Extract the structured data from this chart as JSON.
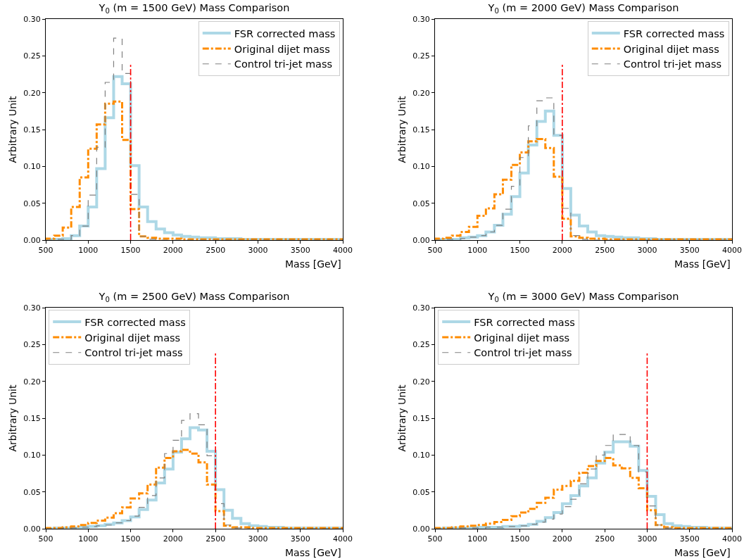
{
  "chart_data": [
    {
      "type": "histogram",
      "title": "Y$_{0}$ (m = 1500 GeV) Mass Comparison",
      "xlabel": "Mass [GeV]",
      "ylabel": "Arbitrary Unit",
      "legend": "top right",
      "grid": false,
      "bins": [
        500,
        600,
        700,
        800,
        900,
        1000,
        1100,
        1200,
        1300,
        1400,
        1500,
        1600,
        1700,
        1800,
        1900,
        2000,
        2100,
        2200,
        2300,
        2400,
        2500,
        2600,
        2700,
        2800,
        2900,
        3000,
        3100,
        3200,
        3300,
        3400,
        3500,
        3600,
        3700,
        3800,
        3900,
        4000
      ],
      "series": [
        {
          "name": "FSR corrected mass",
          "color": "#add8e6",
          "line_style": "solid",
          "values": [
            0.001,
            0.001,
            0.002,
            0.006,
            0.019,
            0.045,
            0.097,
            0.166,
            0.222,
            0.212,
            0.101,
            0.045,
            0.025,
            0.015,
            0.01,
            0.007,
            0.005,
            0.004,
            0.003,
            0.003,
            0.002,
            0.002,
            0.002,
            0.001,
            0.001,
            0.001,
            0.001,
            0.001,
            0.001,
            0.001,
            0.001,
            0.001,
            0.001,
            0.001,
            0.001
          ]
        },
        {
          "name": "Original dijet mass",
          "color": "#ff8c00",
          "line_style": "dashdot",
          "values": [
            0.002,
            0.006,
            0.017,
            0.045,
            0.085,
            0.124,
            0.157,
            0.185,
            0.188,
            0.136,
            0.042,
            0.005,
            0.003,
            0.002,
            0.002,
            0.002,
            0.001,
            0.001,
            0.001,
            0.001,
            0.001,
            0.001,
            0.001,
            0.001,
            0.001,
            0.001,
            0.001,
            0.001,
            0.001,
            0.001,
            0.001,
            0.001,
            0.001,
            0.001,
            0.001
          ]
        },
        {
          "name": "Control tri-jet mass",
          "color": "#808080",
          "line_style": "dashed",
          "values": [
            0,
            0.001,
            0.001,
            0.006,
            0.019,
            0.061,
            0.126,
            0.214,
            0.274,
            0.226,
            0.062,
            0.005,
            0.001,
            0,
            0,
            0,
            0,
            0,
            0,
            0,
            0,
            0,
            0,
            0,
            0,
            0,
            0,
            0,
            0,
            0,
            0,
            0,
            0,
            0,
            0
          ]
        }
      ],
      "xlim": [
        500,
        4000
      ],
      "xticks": [
        500,
        1000,
        1500,
        2000,
        2500,
        3000,
        3500,
        4000
      ],
      "ylim": [
        0,
        0.3
      ],
      "yticks": [
        {
          "value": 0,
          "label": "0.00"
        },
        {
          "value": 0.05,
          "label": "0.05"
        },
        {
          "value": 0.1,
          "label": "0.10"
        },
        {
          "value": 0.15,
          "label": "0.15"
        },
        {
          "value": 0.2,
          "label": "0.20"
        },
        {
          "value": 0.25,
          "label": "0.25"
        },
        {
          "value": 0.3,
          "label": "0.30"
        }
      ],
      "ref_lines": [
        {
          "axis": "x",
          "value": 1500,
          "color": "#ff0000",
          "line_style": "dashdot"
        }
      ]
    },
    {
      "type": "histogram",
      "title": "Y$_{0}$ (m = 2000 GeV) Mass Comparison",
      "xlabel": "Mass [GeV]",
      "ylabel": "Arbitrary Unit",
      "legend": "top right",
      "grid": false,
      "bins": [
        500,
        600,
        700,
        800,
        900,
        1000,
        1100,
        1200,
        1300,
        1400,
        1500,
        1600,
        1700,
        1800,
        1900,
        2000,
        2100,
        2200,
        2300,
        2400,
        2500,
        2600,
        2700,
        2800,
        2900,
        3000,
        3100,
        3200,
        3300,
        3400,
        3500,
        3600,
        3700,
        3800,
        3900,
        4000
      ],
      "series": [
        {
          "name": "FSR corrected mass",
          "color": "#add8e6",
          "line_style": "solid",
          "values": [
            0.001,
            0.001,
            0.001,
            0.003,
            0.004,
            0.006,
            0.011,
            0.02,
            0.035,
            0.059,
            0.091,
            0.129,
            0.161,
            0.175,
            0.142,
            0.07,
            0.034,
            0.019,
            0.011,
            0.006,
            0.005,
            0.004,
            0.003,
            0.003,
            0.002,
            0.002,
            0.001,
            0.001,
            0.001,
            0.001,
            0.001,
            0.001,
            0.001,
            0.001,
            0.001
          ]
        },
        {
          "name": "Original dijet mass",
          "color": "#ff8c00",
          "line_style": "dashdot",
          "values": [
            0.002,
            0.003,
            0.006,
            0.011,
            0.018,
            0.033,
            0.043,
            0.062,
            0.082,
            0.102,
            0.119,
            0.134,
            0.137,
            0.125,
            0.086,
            0.029,
            0.005,
            0.003,
            0.002,
            0.002,
            0.001,
            0.001,
            0.001,
            0.001,
            0.001,
            0.001,
            0.001,
            0.001,
            0.001,
            0.001,
            0.001,
            0.001,
            0.001,
            0.001,
            0.001
          ]
        },
        {
          "name": "Control tri-jet mass",
          "color": "#808080",
          "line_style": "dashed",
          "values": [
            0,
            0.001,
            0.001,
            0.002,
            0.004,
            0.006,
            0.011,
            0.02,
            0.042,
            0.073,
            0.112,
            0.155,
            0.189,
            0.193,
            0.142,
            0.043,
            0.006,
            0.001,
            0,
            0,
            0,
            0,
            0,
            0,
            0,
            0,
            0,
            0,
            0,
            0,
            0,
            0,
            0,
            0,
            0
          ]
        }
      ],
      "xlim": [
        500,
        4000
      ],
      "xticks": [
        500,
        1000,
        1500,
        2000,
        2500,
        3000,
        3500,
        4000
      ],
      "ylim": [
        0,
        0.3
      ],
      "yticks": [
        {
          "value": 0,
          "label": "0.00"
        },
        {
          "value": 0.05,
          "label": "0.05"
        },
        {
          "value": 0.1,
          "label": "0.10"
        },
        {
          "value": 0.15,
          "label": "0.15"
        },
        {
          "value": 0.2,
          "label": "0.20"
        },
        {
          "value": 0.25,
          "label": "0.25"
        },
        {
          "value": 0.3,
          "label": "0.30"
        }
      ],
      "ref_lines": [
        {
          "axis": "x",
          "value": 2000,
          "color": "#ff0000",
          "line_style": "dashdot"
        }
      ]
    },
    {
      "type": "histogram",
      "title": "Y$_{0}$ (m = 2500 GeV) Mass Comparison",
      "xlabel": "Mass [GeV]",
      "ylabel": "Arbitrary Unit",
      "legend": "top left",
      "grid": false,
      "bins": [
        500,
        600,
        700,
        800,
        900,
        1000,
        1100,
        1200,
        1300,
        1400,
        1500,
        1600,
        1700,
        1800,
        1900,
        2000,
        2100,
        2200,
        2300,
        2400,
        2500,
        2600,
        2700,
        2800,
        2900,
        3000,
        3100,
        3200,
        3300,
        3400,
        3500,
        3600,
        3700,
        3800,
        3900,
        4000
      ],
      "series": [
        {
          "name": "FSR corrected mass",
          "color": "#add8e6",
          "line_style": "solid",
          "values": [
            0,
            0.001,
            0.001,
            0.001,
            0.002,
            0.003,
            0.004,
            0.006,
            0.008,
            0.011,
            0.016,
            0.026,
            0.039,
            0.062,
            0.081,
            0.104,
            0.122,
            0.137,
            0.134,
            0.105,
            0.053,
            0.025,
            0.014,
            0.007,
            0.004,
            0.003,
            0.002,
            0.002,
            0.001,
            0.001,
            0.001,
            0.001,
            0.001,
            0.001,
            0.001
          ]
        },
        {
          "name": "Original dijet mass",
          "color": "#ff8c00",
          "line_style": "dashdot",
          "values": [
            0.001,
            0.001,
            0.002,
            0.003,
            0.005,
            0.008,
            0.011,
            0.015,
            0.021,
            0.029,
            0.041,
            0.048,
            0.06,
            0.083,
            0.096,
            0.105,
            0.107,
            0.102,
            0.09,
            0.06,
            0.024,
            0.004,
            0.002,
            0.002,
            0.001,
            0.001,
            0.001,
            0.001,
            0.001,
            0.001,
            0.001,
            0.001,
            0.001,
            0.001,
            0.001
          ]
        },
        {
          "name": "Control tri-jet mass",
          "color": "#808080",
          "line_style": "dashed",
          "values": [
            0,
            0,
            0.001,
            0.001,
            0.002,
            0.003,
            0.004,
            0.005,
            0.008,
            0.011,
            0.017,
            0.029,
            0.045,
            0.069,
            0.102,
            0.12,
            0.147,
            0.156,
            0.141,
            0.099,
            0.034,
            0.005,
            0.001,
            0,
            0,
            0,
            0,
            0,
            0,
            0,
            0,
            0,
            0,
            0,
            0
          ]
        }
      ],
      "xlim": [
        500,
        4000
      ],
      "xticks": [
        500,
        1000,
        1500,
        2000,
        2500,
        3000,
        3500,
        4000
      ],
      "ylim": [
        0,
        0.3
      ],
      "yticks": [
        {
          "value": 0,
          "label": "0.00"
        },
        {
          "value": 0.05,
          "label": "0.05"
        },
        {
          "value": 0.1,
          "label": "0.10"
        },
        {
          "value": 0.15,
          "label": "0.15"
        },
        {
          "value": 0.2,
          "label": "0.20"
        },
        {
          "value": 0.25,
          "label": "0.25"
        },
        {
          "value": 0.3,
          "label": "0.30"
        }
      ],
      "ref_lines": [
        {
          "axis": "x",
          "value": 2500,
          "color": "#ff0000",
          "line_style": "dashdot"
        }
      ]
    },
    {
      "type": "histogram",
      "title": "Y$_{0}$ (m = 3000 GeV) Mass Comparison",
      "xlabel": "Mass [GeV]",
      "ylabel": "Arbitrary Unit",
      "legend": "top left",
      "grid": false,
      "bins": [
        500,
        600,
        700,
        800,
        900,
        1000,
        1100,
        1200,
        1300,
        1400,
        1500,
        1600,
        1700,
        1800,
        1900,
        2000,
        2100,
        2200,
        2300,
        2400,
        2500,
        2600,
        2700,
        2800,
        2900,
        3000,
        3100,
        3200,
        3300,
        3400,
        3500,
        3600,
        3700,
        3800,
        3900,
        4000
      ],
      "series": [
        {
          "name": "FSR corrected mass",
          "color": "#add8e6",
          "line_style": "solid",
          "values": [
            0,
            0.001,
            0.001,
            0.001,
            0.001,
            0.002,
            0.002,
            0.002,
            0.003,
            0.003,
            0.004,
            0.006,
            0.01,
            0.015,
            0.022,
            0.034,
            0.045,
            0.058,
            0.069,
            0.089,
            0.104,
            0.118,
            0.118,
            0.112,
            0.079,
            0.044,
            0.019,
            0.007,
            0.004,
            0.003,
            0.002,
            0.002,
            0.001,
            0.001,
            0.001
          ]
        },
        {
          "name": "Original dijet mass",
          "color": "#ff8c00",
          "line_style": "dashdot",
          "values": [
            0.001,
            0.001,
            0.002,
            0.003,
            0.004,
            0.005,
            0.007,
            0.009,
            0.012,
            0.017,
            0.022,
            0.027,
            0.035,
            0.042,
            0.053,
            0.058,
            0.065,
            0.076,
            0.085,
            0.092,
            0.096,
            0.086,
            0.082,
            0.069,
            0.055,
            0.025,
            0.005,
            0.002,
            0.001,
            0.001,
            0.001,
            0.001,
            0.001,
            0.001,
            0.001
          ]
        },
        {
          "name": "Control tri-jet mass",
          "color": "#808080",
          "line_style": "dashed",
          "values": [
            0,
            0,
            0.001,
            0.001,
            0.001,
            0.001,
            0.002,
            0.002,
            0.003,
            0.003,
            0.004,
            0.006,
            0.009,
            0.013,
            0.02,
            0.03,
            0.04,
            0.061,
            0.081,
            0.1,
            0.113,
            0.128,
            0.128,
            0.113,
            0.077,
            0.031,
            0.005,
            0.001,
            0,
            0,
            0,
            0,
            0,
            0,
            0
          ]
        }
      ],
      "xlim": [
        500,
        4000
      ],
      "xticks": [
        500,
        1000,
        1500,
        2000,
        2500,
        3000,
        3500,
        4000
      ],
      "ylim": [
        0,
        0.3
      ],
      "yticks": [
        {
          "value": 0,
          "label": "0.00"
        },
        {
          "value": 0.05,
          "label": "0.05"
        },
        {
          "value": 0.1,
          "label": "0.10"
        },
        {
          "value": 0.15,
          "label": "0.15"
        },
        {
          "value": 0.2,
          "label": "0.20"
        },
        {
          "value": 0.25,
          "label": "0.25"
        },
        {
          "value": 0.3,
          "label": "0.30"
        }
      ],
      "ref_lines": [
        {
          "axis": "x",
          "value": 3000,
          "color": "#ff0000",
          "line_style": "dashdot"
        }
      ]
    }
  ]
}
